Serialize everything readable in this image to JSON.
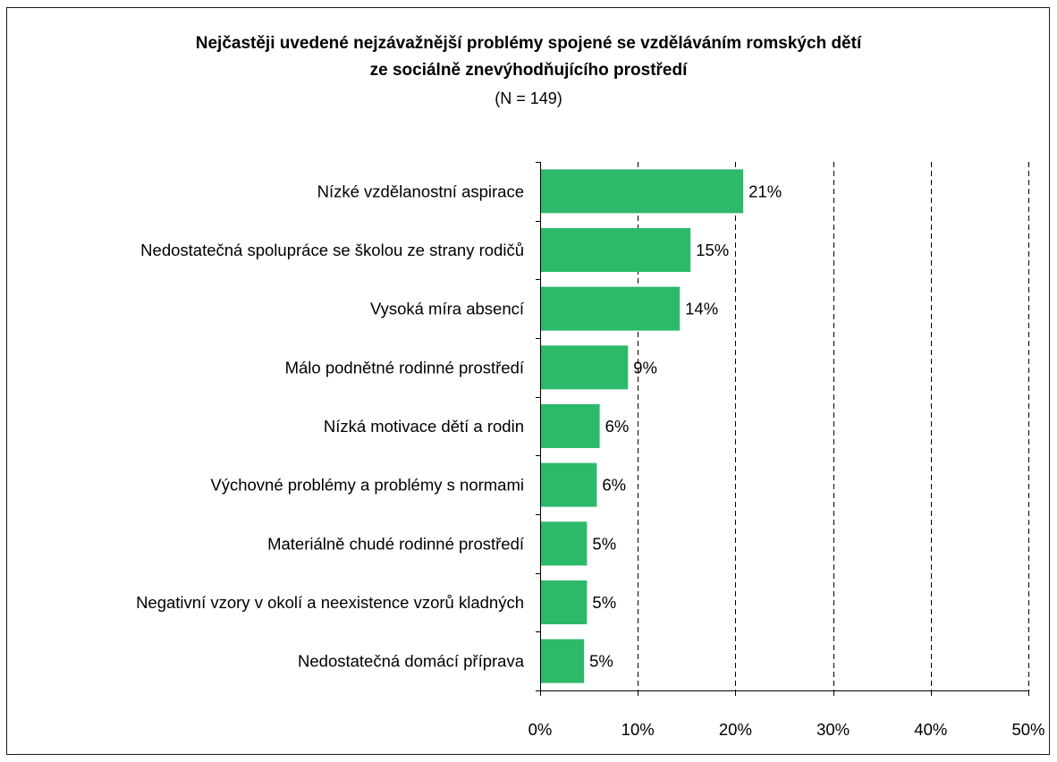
{
  "chart_data": {
    "type": "bar",
    "orientation": "horizontal",
    "title": "Nejčastěji uvedené nejzávažnější problémy spojené se vzděláváním romských dětí ze sociálně znevýhodňujícího prostředí",
    "title_lines": [
      "Nejčastěji uvedené nejzávažnější problémy spojené se vzděláváním romských dětí",
      "ze sociálně znevýhodňujícího prostředí"
    ],
    "subtitle": "(N = 149)",
    "categories": [
      "Nízké vzdělanostní aspirace",
      "Nedostatečná spolupráce se školou ze strany rodičů",
      "Vysoká míra absencí",
      "Málo podnětné rodinné prostředí",
      "Nízká motivace dětí a rodin",
      "Výchovné problémy a problémy s normami",
      "Materiálně chudé rodinné prostředí",
      "Negativní vzory v okolí a neexistence vzorů kladných",
      "Nedostatečná domácí příprava"
    ],
    "values": [
      20.8,
      15.4,
      14.3,
      9.0,
      6.1,
      5.8,
      4.8,
      4.8,
      4.5
    ],
    "value_labels": [
      "21%",
      "15%",
      "14%",
      "9%",
      "6%",
      "6%",
      "5%",
      "5%",
      "5%"
    ],
    "xlim": [
      0,
      50
    ],
    "x_ticks": [
      0,
      10,
      20,
      30,
      40,
      50
    ],
    "x_tick_labels": [
      "0%",
      "10%",
      "20%",
      "30%",
      "40%",
      "50%"
    ],
    "grid": "vertical dashed",
    "legend": "none",
    "bar_color": "#2db96a"
  }
}
